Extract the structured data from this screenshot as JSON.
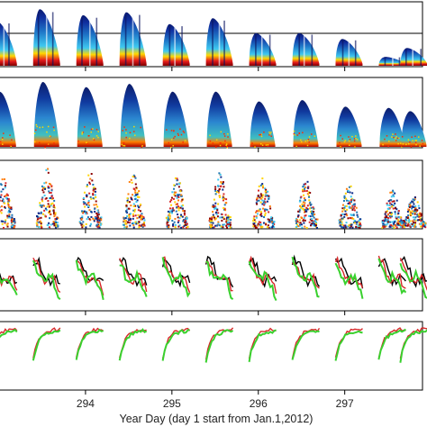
{
  "chart_data": {
    "type": "multi-panel time series",
    "xlabel": "Year Day (day 1 start from Jan.1,2012)",
    "xlim": [
      293.0,
      297.9
    ],
    "x_ticks": [
      294,
      295,
      296,
      297
    ],
    "days": [
      293.05,
      293.55,
      294.05,
      294.55,
      295.05,
      295.55,
      296.05,
      296.55,
      297.05,
      297.55,
      297.8
    ],
    "panels": [
      {
        "kind": "curtain",
        "day_peaks": [
          0.75,
          0.95,
          0.85,
          0.9,
          0.7,
          0.8,
          0.55,
          0.55,
          0.45,
          0.15,
          0.3
        ],
        "guide_line": true
      },
      {
        "kind": "curtain",
        "day_peaks": [
          0.85,
          1.0,
          0.92,
          0.97,
          0.85,
          0.85,
          0.7,
          0.72,
          0.62,
          0.6,
          0.55
        ]
      },
      {
        "kind": "scatter-field",
        "day_peaks": [
          0.8,
          0.95,
          0.9,
          0.88,
          0.85,
          0.88,
          0.8,
          0.75,
          0.7,
          0.6,
          0.5
        ]
      },
      {
        "kind": "lines",
        "series_colors": [
          "#000000",
          "#d62728",
          "#39d12e"
        ]
      },
      {
        "kind": "lines",
        "series_colors": [
          "#d62728",
          "#39d12e"
        ]
      }
    ]
  }
}
